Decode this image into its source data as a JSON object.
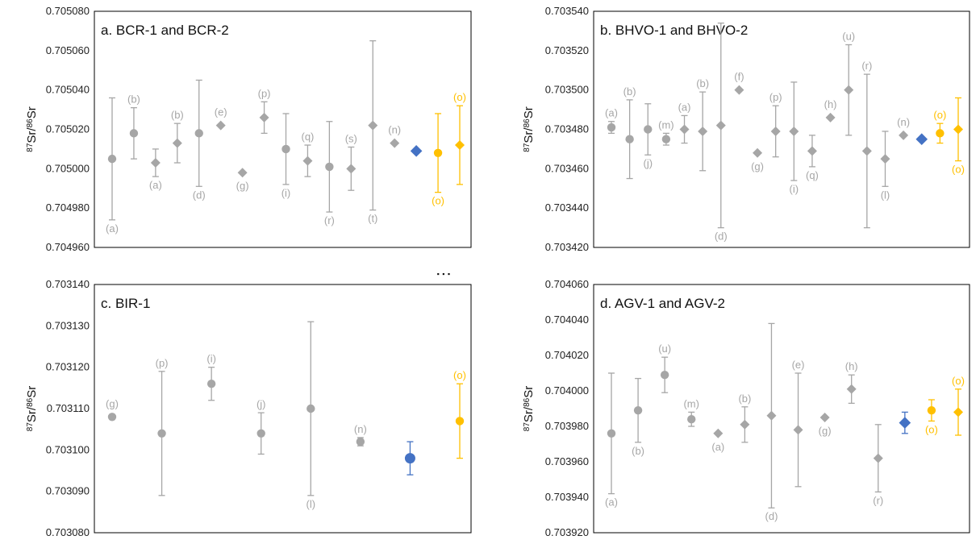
{
  "colors": {
    "ref": "#a6a6a6",
    "this_study": "#4472c4",
    "highlight": "#ffc000",
    "frame": "#000000"
  },
  "stray_text": "ᐧᐧᐧ",
  "chart_data": [
    {
      "type": "scatter",
      "title": "a. BCR-1 and BCR-2",
      "ylabel": "87Sr/86Sr",
      "ylim": [
        0.70496,
        0.70508
      ],
      "ystep": 2e-05,
      "ydecimals": 6,
      "points": [
        {
          "y": 0.705005,
          "err": 3.1e-05,
          "marker": "circle",
          "color": "ref",
          "label": "(a)",
          "label_pos": "below"
        },
        {
          "y": 0.705018,
          "err": 1.3e-05,
          "marker": "circle",
          "color": "ref",
          "label": "(b)",
          "label_pos": "above"
        },
        {
          "y": 0.705003,
          "err": 7e-06,
          "marker": "diamond",
          "color": "ref",
          "label": "(a)",
          "label_pos": "below"
        },
        {
          "y": 0.705013,
          "err": 1e-05,
          "marker": "diamond",
          "color": "ref",
          "label": "(b)",
          "label_pos": "above"
        },
        {
          "y": 0.705018,
          "err": 2.7e-05,
          "marker": "circle",
          "color": "ref",
          "label": "(d)",
          "label_pos": "below"
        },
        {
          "y": 0.705022,
          "err": 0,
          "marker": "diamond",
          "color": "ref",
          "label": "(e)",
          "label_pos": "above"
        },
        {
          "y": 0.704998,
          "err": 0,
          "marker": "diamond",
          "color": "ref",
          "label": "(g)",
          "label_pos": "below"
        },
        {
          "y": 0.705026,
          "err": 8e-06,
          "marker": "diamond",
          "color": "ref",
          "label": "(p)",
          "label_pos": "above"
        },
        {
          "y": 0.70501,
          "err": 1.8e-05,
          "marker": "circle",
          "color": "ref",
          "label": "(i)",
          "label_pos": "below"
        },
        {
          "y": 0.705004,
          "err": 8e-06,
          "marker": "diamond",
          "color": "ref",
          "label": "(q)",
          "label_pos": "above"
        },
        {
          "y": 0.705001,
          "err": 2.3e-05,
          "marker": "circle",
          "color": "ref",
          "label": "(r)",
          "label_pos": "below"
        },
        {
          "y": 0.705,
          "err": 1.1e-05,
          "marker": "diamond",
          "color": "ref",
          "label": "(s)",
          "label_pos": "above"
        },
        {
          "y": 0.705022,
          "err": 4.3e-05,
          "marker": "diamond",
          "color": "ref",
          "label": "(t)",
          "label_pos": "below"
        },
        {
          "y": 0.705013,
          "err": 0,
          "marker": "diamond",
          "color": "ref",
          "label": "(n)",
          "label_pos": "above"
        },
        {
          "y": 0.705009,
          "err": 0,
          "marker": "diamond",
          "color": "this_study",
          "label": "",
          "label_pos": "above"
        },
        {
          "y": 0.705008,
          "err": 2e-05,
          "marker": "circle",
          "color": "highlight",
          "label": "(o)",
          "label_pos": "below"
        },
        {
          "y": 0.705012,
          "err": 2e-05,
          "marker": "diamond",
          "color": "highlight",
          "label": "(o)",
          "label_pos": "above"
        }
      ]
    },
    {
      "type": "scatter",
      "title": "b. BHVO-1 and BHVO-2",
      "ylabel": "87Sr/86Sr",
      "ylim": [
        0.70342,
        0.70354
      ],
      "ystep": 2e-05,
      "ydecimals": 6,
      "points": [
        {
          "y": 0.703481,
          "err": 3e-06,
          "marker": "circle",
          "color": "ref",
          "label": "(a)",
          "label_pos": "above"
        },
        {
          "y": 0.703475,
          "err": 2e-05,
          "marker": "circle",
          "color": "ref",
          "label": "(b)",
          "label_pos": "above"
        },
        {
          "y": 0.70348,
          "err": 1.3e-05,
          "marker": "circle",
          "color": "ref",
          "label": "(j)",
          "label_pos": "below"
        },
        {
          "y": 0.703475,
          "err": 3e-06,
          "marker": "circle",
          "color": "ref",
          "label": "(m)",
          "label_pos": "above"
        },
        {
          "y": 0.70348,
          "err": 7e-06,
          "marker": "diamond",
          "color": "ref",
          "label": "(a)",
          "label_pos": "above"
        },
        {
          "y": 0.703479,
          "err": 2e-05,
          "marker": "diamond",
          "color": "ref",
          "label": "(b)",
          "label_pos": "above"
        },
        {
          "y": 0.703482,
          "err": 5.2e-05,
          "marker": "diamond",
          "color": "ref",
          "label": "(d)",
          "label_pos": "below"
        },
        {
          "y": 0.7035,
          "err": 0,
          "marker": "diamond",
          "color": "ref",
          "label": "(f)",
          "label_pos": "above"
        },
        {
          "y": 0.703468,
          "err": 0,
          "marker": "diamond",
          "color": "ref",
          "label": "(g)",
          "label_pos": "below"
        },
        {
          "y": 0.703479,
          "err": 1.3e-05,
          "marker": "diamond",
          "color": "ref",
          "label": "(p)",
          "label_pos": "above"
        },
        {
          "y": 0.703479,
          "err": 2.5e-05,
          "marker": "diamond",
          "color": "ref",
          "label": "(i)",
          "label_pos": "below"
        },
        {
          "y": 0.703469,
          "err": 8e-06,
          "marker": "diamond",
          "color": "ref",
          "label": "(q)",
          "label_pos": "below"
        },
        {
          "y": 0.703486,
          "err": 0,
          "marker": "diamond",
          "color": "ref",
          "label": "(h)",
          "label_pos": "above"
        },
        {
          "y": 0.7035,
          "err": 2.3e-05,
          "marker": "diamond",
          "color": "ref",
          "label": "(u)",
          "label_pos": "above"
        },
        {
          "y": 0.703469,
          "err": 3.9e-05,
          "marker": "diamond",
          "color": "ref",
          "label": "(r)",
          "label_pos": "above"
        },
        {
          "y": 0.703465,
          "err": 1.4e-05,
          "marker": "diamond",
          "color": "ref",
          "label": "(l)",
          "label_pos": "below"
        },
        {
          "y": 0.703477,
          "err": 0,
          "marker": "diamond",
          "color": "ref",
          "label": "(n)",
          "label_pos": "above"
        },
        {
          "y": 0.703475,
          "err": 0,
          "marker": "diamond",
          "color": "this_study",
          "label": "",
          "label_pos": "above"
        },
        {
          "y": 0.703478,
          "err": 5e-06,
          "marker": "circle",
          "color": "highlight",
          "label": "(o)",
          "label_pos": "above"
        },
        {
          "y": 0.70348,
          "err": 1.6e-05,
          "marker": "diamond",
          "color": "highlight",
          "label": "(o)",
          "label_pos": "below"
        }
      ]
    },
    {
      "type": "scatter",
      "title": "c. BIR-1",
      "ylabel": "87Sr/86Sr",
      "ylim": [
        0.70308,
        0.70314
      ],
      "ystep": 1e-05,
      "ydecimals": 6,
      "points": [
        {
          "y": 0.703108,
          "err": 0,
          "marker": "circle",
          "color": "ref",
          "label": "(g)",
          "label_pos": "above"
        },
        {
          "y": 0.703104,
          "err": 1.5e-05,
          "marker": "circle",
          "color": "ref",
          "label": "(p)",
          "label_pos": "above"
        },
        {
          "y": 0.703116,
          "err": 4e-06,
          "marker": "circle",
          "color": "ref",
          "label": "(i)",
          "label_pos": "above"
        },
        {
          "y": 0.703104,
          "err": 5e-06,
          "marker": "circle",
          "color": "ref",
          "label": "(j)",
          "label_pos": "above"
        },
        {
          "y": 0.70311,
          "err": 2.1e-05,
          "marker": "circle",
          "color": "ref",
          "label": "(l)",
          "label_pos": "below"
        },
        {
          "y": 0.703102,
          "err": 1e-06,
          "marker": "circle",
          "color": "ref",
          "label": "(n)",
          "label_pos": "above"
        },
        {
          "y": 0.703098,
          "err": 4e-06,
          "marker": "circle",
          "color": "this_study",
          "label": "",
          "label_pos": "above"
        },
        {
          "y": 0.703107,
          "err": 9e-06,
          "marker": "circle",
          "color": "highlight",
          "label": "(o)",
          "label_pos": "above"
        }
      ]
    },
    {
      "type": "scatter",
      "title": "d. AGV-1 and AGV-2",
      "ylabel": "87Sr/86Sr",
      "ylim": [
        0.70392,
        0.70406
      ],
      "ystep": 2e-05,
      "ydecimals": 6,
      "points": [
        {
          "y": 0.703976,
          "err": 3.4e-05,
          "marker": "circle",
          "color": "ref",
          "label": "(a)",
          "label_pos": "below"
        },
        {
          "y": 0.703989,
          "err": 1.8e-05,
          "marker": "circle",
          "color": "ref",
          "label": "(b)",
          "label_pos": "below"
        },
        {
          "y": 0.704009,
          "err": 1e-05,
          "marker": "circle",
          "color": "ref",
          "label": "(u)",
          "label_pos": "above"
        },
        {
          "y": 0.703984,
          "err": 4e-06,
          "marker": "circle",
          "color": "ref",
          "label": "(m)",
          "label_pos": "above"
        },
        {
          "y": 0.703976,
          "err": 0,
          "marker": "diamond",
          "color": "ref",
          "label": "(a)",
          "label_pos": "below"
        },
        {
          "y": 0.703981,
          "err": 1e-05,
          "marker": "diamond",
          "color": "ref",
          "label": "(b)",
          "label_pos": "above"
        },
        {
          "y": 0.703986,
          "err": 5.2e-05,
          "marker": "diamond",
          "color": "ref",
          "label": "(d)",
          "label_pos": "below"
        },
        {
          "y": 0.703978,
          "err": 3.2e-05,
          "marker": "diamond",
          "color": "ref",
          "label": "(e)",
          "label_pos": "above"
        },
        {
          "y": 0.703985,
          "err": 0,
          "marker": "diamond",
          "color": "ref",
          "label": "(g)",
          "label_pos": "below"
        },
        {
          "y": 0.704001,
          "err": 8e-06,
          "marker": "diamond",
          "color": "ref",
          "label": "(h)",
          "label_pos": "above"
        },
        {
          "y": 0.703962,
          "err": 1.9e-05,
          "marker": "diamond",
          "color": "ref",
          "label": "(r)",
          "label_pos": "below"
        },
        {
          "y": 0.703982,
          "err": 6e-06,
          "marker": "diamond",
          "color": "this_study",
          "label": "",
          "label_pos": "above"
        },
        {
          "y": 0.703989,
          "err": 6e-06,
          "marker": "circle",
          "color": "highlight",
          "label": "(o)",
          "label_pos": "below"
        },
        {
          "y": 0.703988,
          "err": 1.3e-05,
          "marker": "diamond",
          "color": "highlight",
          "label": "(o)",
          "label_pos": "above"
        }
      ]
    }
  ]
}
